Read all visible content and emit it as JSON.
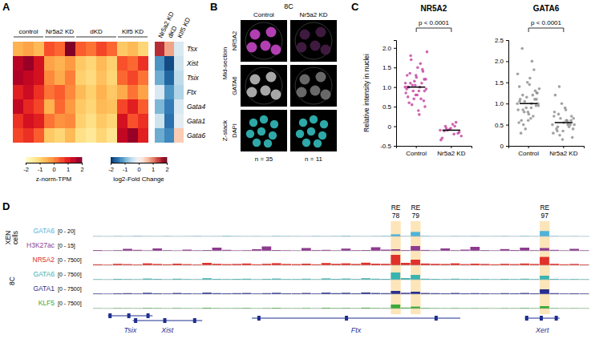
{
  "panel_labels": [
    "A",
    "B",
    "C",
    "D"
  ],
  "chart_data": [
    {
      "type": "heatmap",
      "groups": [
        {
          "name": "control",
          "values": [
            [
              -0.5,
              -0.3,
              -0.6
            ],
            [
              1.5,
              1.8,
              1.2
            ],
            [
              1.6,
              1.4,
              1.2
            ],
            [
              1.0,
              1.3,
              0.8
            ],
            [
              1.4,
              0.9,
              0.6
            ],
            [
              0.8,
              1.2,
              1.0
            ],
            [
              0.6,
              0.8,
              0.4
            ]
          ]
        },
        {
          "name": "Nr5a2 KD",
          "values": [
            [
              0.5,
              0.3,
              2.0
            ],
            [
              -0.3,
              -0.5,
              -0.2
            ],
            [
              0.0,
              -0.4,
              0.1
            ],
            [
              0.2,
              0.4,
              0.0
            ],
            [
              -0.5,
              0.3,
              -0.2
            ],
            [
              0.2,
              -0.1,
              0.0
            ],
            [
              -0.8,
              -1.0,
              -0.6
            ]
          ]
        },
        {
          "name": "dKD",
          "values": [
            [
              0.4,
              0.2,
              0.6,
              0.3
            ],
            [
              -0.8,
              -1.0,
              -0.6,
              -0.9
            ],
            [
              -0.9,
              -1.1,
              -0.7,
              -1.0
            ],
            [
              -0.6,
              -0.9,
              -0.5,
              -0.8
            ],
            [
              -0.8,
              -1.0,
              -0.6,
              -0.7
            ],
            [
              -0.9,
              -1.2,
              -0.8,
              -1.0
            ],
            [
              -1.2,
              -1.4,
              -1.0,
              -1.3
            ]
          ]
        },
        {
          "name": "Klf5 KD",
          "values": [
            [
              -0.8,
              -0.6,
              -1.0
            ],
            [
              0.5,
              0.3,
              0.8
            ],
            [
              0.3,
              0.6,
              0.2
            ],
            [
              -0.4,
              0.2,
              -0.3
            ],
            [
              0.6,
              1.0,
              0.4
            ],
            [
              1.2,
              0.5,
              0.8
            ],
            [
              1.4,
              1.8,
              1.0
            ]
          ]
        }
      ],
      "colorbar": {
        "title": "z-norm-TPM",
        "range": [
          -2,
          2
        ],
        "ticks": [
          -2,
          -1,
          0,
          1,
          2
        ]
      }
    },
    {
      "type": "heatmap",
      "rows": [
        "Tsx",
        "Xist",
        "Tsix",
        "Ftx",
        "Gata4",
        "Gata1",
        "Gata6"
      ],
      "categories": [
        "Nr5a2 KD",
        "dKD",
        "Klf5 KD"
      ],
      "values": [
        [
          1.5,
          0.8,
          -0.3
        ],
        [
          -1.2,
          -1.8,
          -0.4
        ],
        [
          -1.0,
          -1.6,
          -0.5
        ],
        [
          -0.3,
          -1.2,
          -0.6
        ],
        [
          -0.9,
          -1.4,
          -0.3
        ],
        [
          -0.4,
          -1.5,
          -0.2
        ],
        [
          -1.0,
          -1.3,
          0.5
        ]
      ],
      "colorbar": {
        "title": "log2-Fold Change",
        "range": [
          -2,
          2
        ],
        "ticks": [
          -2,
          -1,
          0,
          1,
          2
        ]
      }
    },
    {
      "type": "strip",
      "title": "NR5A2",
      "ylabel": "Relative intensity in nuclei",
      "categories": [
        "Control",
        "Nr5a2 KD"
      ],
      "colors": [
        "#c2419f",
        "#c2419f"
      ],
      "values": [
        [
          1.0,
          0.9,
          1.1,
          1.2,
          0.8,
          1.3,
          0.7,
          1.05,
          0.95,
          1.5,
          0.6,
          1.4,
          1.15,
          0.85,
          1.0,
          1.7,
          0.5,
          1.25,
          0.75,
          1.1,
          0.9,
          1.9,
          0.4,
          1.35,
          0.65,
          1.05,
          0.95,
          1.6,
          0.55,
          1.2,
          0.8,
          1.0,
          1.45,
          0.7,
          1.1,
          0.3,
          1.8,
          0.9,
          1.3,
          1.0
        ],
        [
          -0.1,
          -0.2,
          0.0,
          -0.15,
          -0.05,
          -0.3,
          0.1,
          -0.1,
          -0.25,
          0.05,
          -0.12,
          -0.18,
          -0.08,
          -0.35,
          0.0,
          -0.05
        ]
      ],
      "medians": [
        1.0,
        -0.1
      ],
      "annotation": "p < 0.0001",
      "ylim": [
        -0.5,
        2.2
      ],
      "yticks": [
        -0.5,
        0,
        0.5,
        {
          "value": 1,
          "label": "1.0"
        },
        1.5,
        {
          "value": 2,
          "label": "2.0"
        }
      ]
    },
    {
      "type": "strip",
      "title": "GATA6",
      "categories": [
        "Control",
        "Nr5a2 KD"
      ],
      "colors": [
        "#8c8c8c",
        "#8c8c8c"
      ],
      "values": [
        [
          1.0,
          0.9,
          1.2,
          1.1,
          0.8,
          1.4,
          0.7,
          1.05,
          0.95,
          1.6,
          0.6,
          1.3,
          1.15,
          0.85,
          2.0,
          0.5,
          1.25,
          0.75,
          1.1,
          1.8,
          0.4,
          1.35,
          0.65,
          2.3,
          0.95,
          1.5,
          0.55,
          1.2,
          0.8,
          1.0,
          1.45,
          0.3,
          1.1,
          0.9,
          1.7,
          1.0,
          0.85,
          1.25,
          0.6,
          1.05
        ],
        [
          0.5,
          0.6,
          0.45,
          0.7,
          0.35,
          0.8,
          0.55,
          0.25,
          0.65,
          0.9,
          0.4,
          0.5,
          1.0,
          0.3,
          0.6,
          0.75,
          0.2,
          0.55,
          1.2,
          0.45,
          0.65,
          0.5,
          0.85,
          0.35,
          0.6,
          0.15,
          0.7,
          0.5,
          1.4,
          0.4
        ]
      ],
      "medians": [
        1.0,
        0.55
      ],
      "annotation": "p < 0.0001",
      "ylim": [
        0,
        2.5
      ],
      "yticks": [
        0,
        0.5,
        {
          "value": 1,
          "label": "1.0"
        },
        1.5,
        {
          "value": 2,
          "label": "2.0"
        },
        2.5
      ]
    },
    {
      "type": "tracks",
      "xlim": [
        0,
        50
      ],
      "tick_labels": false,
      "regions": [
        {
          "label": "RE 78",
          "start": 30,
          "end": 31
        },
        {
          "label": "RE 79",
          "start": 32,
          "end": 33
        },
        {
          "label": "RE 97",
          "start": 45,
          "end": 46
        }
      ],
      "track_groups": [
        {
          "name": "XEN cells",
          "tracks": [
            {
              "name": "GATA6",
              "color": "#4fb3d9",
              "ylim": [
                0,
                20
              ],
              "ylim_label": "[0 - 20]",
              "values": [
                0.5,
                0.3,
                0.6,
                0.4,
                0.8,
                0.5,
                0.4,
                0.6,
                0.3,
                0.5,
                0.7,
                0.4,
                0.5,
                0.9,
                0.6,
                0.4,
                0.5,
                0.3,
                0.8,
                0.6,
                0.5,
                0.4,
                0.7,
                0.5,
                0.6,
                1.0,
                0.5,
                0.4,
                0.6,
                0.8,
                3.5,
                0.6,
                7.5,
                0.8,
                0.5,
                0.4,
                0.6,
                0.5,
                0.7,
                0.4,
                0.5,
                0.6,
                0.4,
                0.8,
                0.5,
                9.0,
                0.7,
                0.4,
                0.5,
                0.3
              ]
            },
            {
              "name": "H3K27ac",
              "color": "#8e3b8e",
              "ylim": [
                0,
                15
              ],
              "ylim_label": "[0 - 15]",
              "values": [
                1.0,
                0.5,
                0.8,
                2.5,
                1.2,
                0.6,
                3.0,
                0.8,
                0.5,
                1.5,
                0.7,
                1.0,
                4.0,
                1.2,
                0.6,
                0.8,
                2.0,
                5.5,
                1.0,
                0.7,
                0.5,
                3.5,
                0.9,
                1.2,
                0.6,
                2.8,
                0.8,
                1.0,
                4.5,
                1.5,
                2.0,
                0.9,
                6.0,
                1.1,
                0.7,
                3.0,
                0.8,
                1.5,
                5.0,
                0.9,
                0.6,
                2.2,
                1.0,
                4.0,
                0.8,
                3.5,
                1.2,
                0.6,
                2.5,
                0.7
              ]
            }
          ]
        },
        {
          "name": "8C",
          "tracks": [
            {
              "name": "NR5A2",
              "color": "#e0312a",
              "ylim": [
                0,
                7500
              ],
              "ylim_label": "[0 - 7500]",
              "values": [
                600,
                400,
                900,
                700,
                500,
                1200,
                800,
                600,
                1000,
                700,
                500,
                1500,
                900,
                700,
                800,
                1100,
                600,
                900,
                1300,
                800,
                700,
                1000,
                600,
                1400,
                900,
                1200,
                800,
                1600,
                1000,
                900,
                6500,
                1500,
                3500,
                1100,
                900,
                800,
                1200,
                700,
                1000,
                800,
                600,
                900,
                700,
                1100,
                800,
                5200,
                900,
                600,
                800,
                500
              ]
            },
            {
              "name": "GATA6",
              "color": "#3ab4b0",
              "ylim": [
                0,
                7500
              ],
              "ylim_label": "[0 - 7500]",
              "values": [
                300,
                200,
                500,
                400,
                300,
                700,
                500,
                300,
                600,
                400,
                300,
                900,
                500,
                400,
                500,
                600,
                300,
                500,
                700,
                400,
                400,
                600,
                300,
                800,
                500,
                700,
                400,
                900,
                600,
                500,
                4500,
                1000,
                3000,
                600,
                500,
                400,
                600,
                400,
                500,
                400,
                300,
                500,
                400,
                600,
                400,
                2500,
                500,
                300,
                400,
                300
              ]
            },
            {
              "name": "GATA1",
              "color": "#2b2f8f",
              "ylim": [
                0,
                7500
              ],
              "ylim_label": "[0 - 7500]",
              "values": [
                400,
                300,
                500,
                600,
                400,
                800,
                500,
                400,
                700,
                500,
                400,
                900,
                600,
                500,
                600,
                700,
                400,
                600,
                800,
                500,
                500,
                700,
                400,
                900,
                600,
                800,
                500,
                1000,
                700,
                600,
                2000,
                800,
                1500,
                700,
                600,
                500,
                700,
                500,
                600,
                500,
                400,
                600,
                500,
                700,
                500,
                3000,
                600,
                400,
                500,
                400
              ]
            },
            {
              "name": "KLF5",
              "color": "#3aaa3a",
              "ylim": [
                0,
                7500
              ],
              "ylim_label": "[0 - 7500]",
              "values": [
                200,
                150,
                300,
                250,
                200,
                400,
                300,
                200,
                350,
                250,
                200,
                500,
                300,
                250,
                300,
                400,
                200,
                300,
                450,
                250,
                250,
                350,
                200,
                500,
                300,
                400,
                250,
                550,
                350,
                300,
                2500,
                600,
                1200,
                400,
                300,
                250,
                350,
                250,
                300,
                250,
                200,
                300,
                250,
                400,
                250,
                1500,
                300,
                200,
                250,
                200
              ]
            }
          ]
        }
      ],
      "genes": [
        {
          "name": "Tsix",
          "start": 1.5,
          "end": 6
        },
        {
          "name": "Xist",
          "start": 4,
          "end": 11
        },
        {
          "name": "Ftx",
          "start": 16,
          "end": 37
        },
        {
          "name": "Xert",
          "start": 43.5,
          "end": 47
        }
      ]
    }
  ],
  "image_panel": {
    "stage": "8C",
    "columns": [
      "Control",
      "Nr5a2 KD"
    ],
    "sections": [
      {
        "name": "Mid-section",
        "channels": [
          "NR5A2",
          "GATA6"
        ]
      },
      {
        "name": "Z-stack",
        "channels": [
          "DAPI"
        ]
      }
    ],
    "counts": [
      "n = 35",
      "n = 11"
    ]
  }
}
